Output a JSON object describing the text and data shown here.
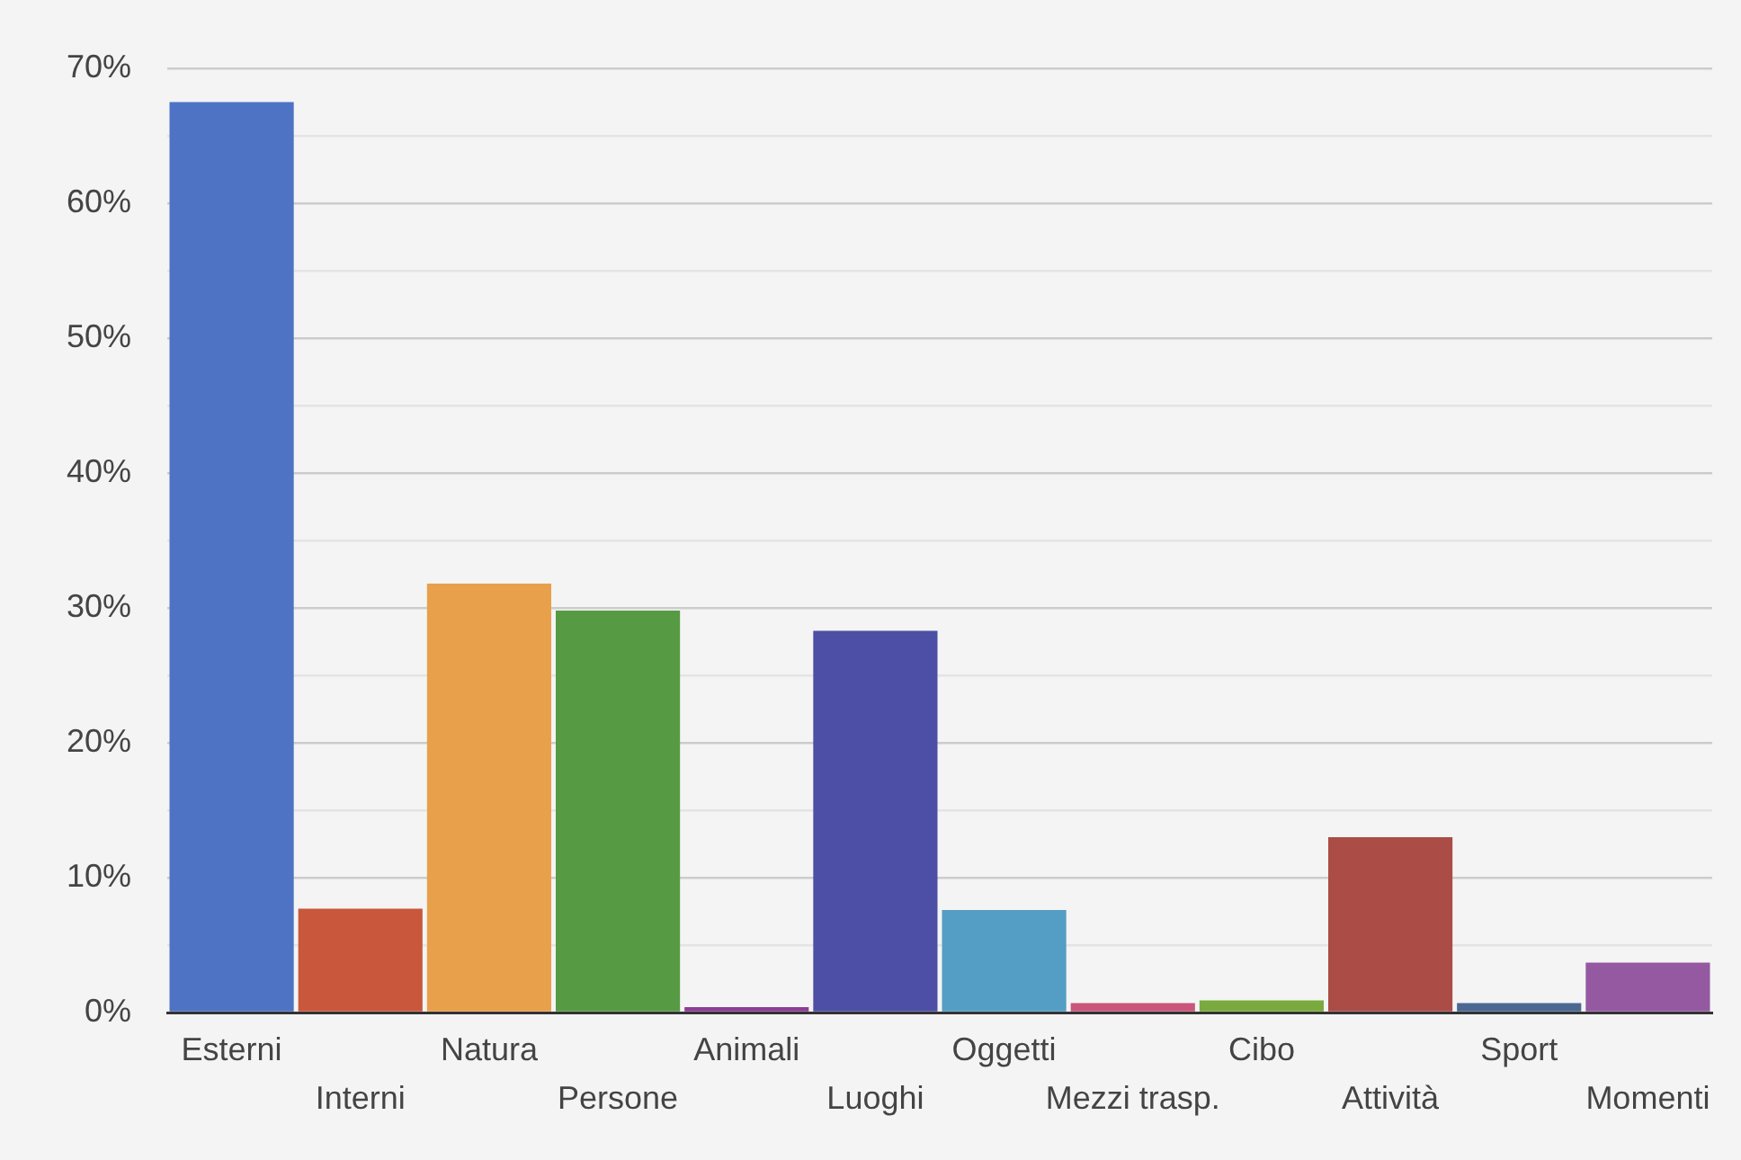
{
  "chart_data": {
    "type": "bar",
    "categories": [
      "Esterni",
      "Interni",
      "Natura",
      "Persone",
      "Animali",
      "Luoghi",
      "Oggetti",
      "Mezzi trasp.",
      "Cibo",
      "Attività",
      "Sport",
      "Momenti"
    ],
    "values": [
      67.5,
      7.7,
      31.8,
      29.8,
      0.4,
      28.3,
      7.6,
      0.7,
      0.9,
      13.0,
      0.7,
      3.7
    ],
    "colors": [
      "#4e73c4",
      "#c9573c",
      "#e9a04a",
      "#579a44",
      "#8e3b96",
      "#4c4fa5",
      "#549dc4",
      "#c9557a",
      "#7aaa3e",
      "#ab4c47",
      "#4a6891",
      "#9459a0"
    ],
    "ylim": [
      0,
      70
    ],
    "yticks": [
      {
        "value": 0,
        "label": "0%"
      },
      {
        "value": 5,
        "label": null
      },
      {
        "value": 10,
        "label": "10%"
      },
      {
        "value": 15,
        "label": null
      },
      {
        "value": 20,
        "label": "20%"
      },
      {
        "value": 25,
        "label": null
      },
      {
        "value": 30,
        "label": "30%"
      },
      {
        "value": 35,
        "label": null
      },
      {
        "value": 40,
        "label": "40%"
      },
      {
        "value": 45,
        "label": null
      },
      {
        "value": 50,
        "label": "50%"
      },
      {
        "value": 55,
        "label": null
      },
      {
        "value": 60,
        "label": "60%"
      },
      {
        "value": 65,
        "label": null
      },
      {
        "value": 70,
        "label": "70%"
      }
    ],
    "grid": "y"
  }
}
